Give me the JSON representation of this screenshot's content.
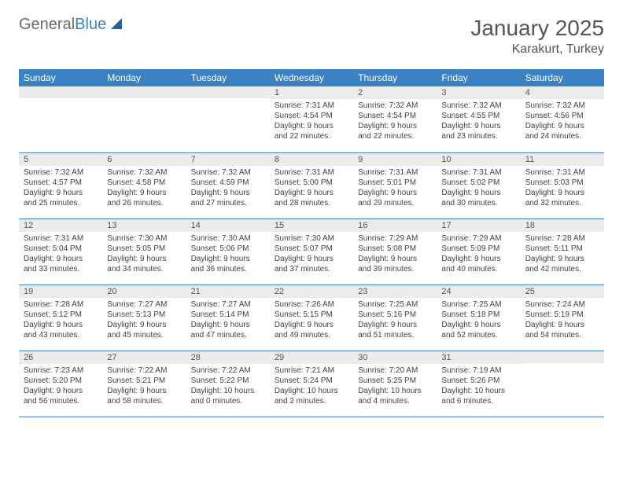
{
  "logo": {
    "text1": "General",
    "text2": "Blue"
  },
  "title": "January 2025",
  "location": "Karakurt, Turkey",
  "header_bg": "#3b82c4",
  "dayheaders": [
    "Sunday",
    "Monday",
    "Tuesday",
    "Wednesday",
    "Thursday",
    "Friday",
    "Saturday"
  ],
  "weeks": [
    [
      {
        "n": "",
        "sr": "",
        "ss": "",
        "dl1": "",
        "dl2": ""
      },
      {
        "n": "",
        "sr": "",
        "ss": "",
        "dl1": "",
        "dl2": ""
      },
      {
        "n": "",
        "sr": "",
        "ss": "",
        "dl1": "",
        "dl2": ""
      },
      {
        "n": "1",
        "sr": "Sunrise: 7:31 AM",
        "ss": "Sunset: 4:54 PM",
        "dl1": "Daylight: 9 hours",
        "dl2": "and 22 minutes."
      },
      {
        "n": "2",
        "sr": "Sunrise: 7:32 AM",
        "ss": "Sunset: 4:54 PM",
        "dl1": "Daylight: 9 hours",
        "dl2": "and 22 minutes."
      },
      {
        "n": "3",
        "sr": "Sunrise: 7:32 AM",
        "ss": "Sunset: 4:55 PM",
        "dl1": "Daylight: 9 hours",
        "dl2": "and 23 minutes."
      },
      {
        "n": "4",
        "sr": "Sunrise: 7:32 AM",
        "ss": "Sunset: 4:56 PM",
        "dl1": "Daylight: 9 hours",
        "dl2": "and 24 minutes."
      }
    ],
    [
      {
        "n": "5",
        "sr": "Sunrise: 7:32 AM",
        "ss": "Sunset: 4:57 PM",
        "dl1": "Daylight: 9 hours",
        "dl2": "and 25 minutes."
      },
      {
        "n": "6",
        "sr": "Sunrise: 7:32 AM",
        "ss": "Sunset: 4:58 PM",
        "dl1": "Daylight: 9 hours",
        "dl2": "and 26 minutes."
      },
      {
        "n": "7",
        "sr": "Sunrise: 7:32 AM",
        "ss": "Sunset: 4:59 PM",
        "dl1": "Daylight: 9 hours",
        "dl2": "and 27 minutes."
      },
      {
        "n": "8",
        "sr": "Sunrise: 7:31 AM",
        "ss": "Sunset: 5:00 PM",
        "dl1": "Daylight: 9 hours",
        "dl2": "and 28 minutes."
      },
      {
        "n": "9",
        "sr": "Sunrise: 7:31 AM",
        "ss": "Sunset: 5:01 PM",
        "dl1": "Daylight: 9 hours",
        "dl2": "and 29 minutes."
      },
      {
        "n": "10",
        "sr": "Sunrise: 7:31 AM",
        "ss": "Sunset: 5:02 PM",
        "dl1": "Daylight: 9 hours",
        "dl2": "and 30 minutes."
      },
      {
        "n": "11",
        "sr": "Sunrise: 7:31 AM",
        "ss": "Sunset: 5:03 PM",
        "dl1": "Daylight: 9 hours",
        "dl2": "and 32 minutes."
      }
    ],
    [
      {
        "n": "12",
        "sr": "Sunrise: 7:31 AM",
        "ss": "Sunset: 5:04 PM",
        "dl1": "Daylight: 9 hours",
        "dl2": "and 33 minutes."
      },
      {
        "n": "13",
        "sr": "Sunrise: 7:30 AM",
        "ss": "Sunset: 5:05 PM",
        "dl1": "Daylight: 9 hours",
        "dl2": "and 34 minutes."
      },
      {
        "n": "14",
        "sr": "Sunrise: 7:30 AM",
        "ss": "Sunset: 5:06 PM",
        "dl1": "Daylight: 9 hours",
        "dl2": "and 36 minutes."
      },
      {
        "n": "15",
        "sr": "Sunrise: 7:30 AM",
        "ss": "Sunset: 5:07 PM",
        "dl1": "Daylight: 9 hours",
        "dl2": "and 37 minutes."
      },
      {
        "n": "16",
        "sr": "Sunrise: 7:29 AM",
        "ss": "Sunset: 5:08 PM",
        "dl1": "Daylight: 9 hours",
        "dl2": "and 39 minutes."
      },
      {
        "n": "17",
        "sr": "Sunrise: 7:29 AM",
        "ss": "Sunset: 5:09 PM",
        "dl1": "Daylight: 9 hours",
        "dl2": "and 40 minutes."
      },
      {
        "n": "18",
        "sr": "Sunrise: 7:28 AM",
        "ss": "Sunset: 5:11 PM",
        "dl1": "Daylight: 9 hours",
        "dl2": "and 42 minutes."
      }
    ],
    [
      {
        "n": "19",
        "sr": "Sunrise: 7:28 AM",
        "ss": "Sunset: 5:12 PM",
        "dl1": "Daylight: 9 hours",
        "dl2": "and 43 minutes."
      },
      {
        "n": "20",
        "sr": "Sunrise: 7:27 AM",
        "ss": "Sunset: 5:13 PM",
        "dl1": "Daylight: 9 hours",
        "dl2": "and 45 minutes."
      },
      {
        "n": "21",
        "sr": "Sunrise: 7:27 AM",
        "ss": "Sunset: 5:14 PM",
        "dl1": "Daylight: 9 hours",
        "dl2": "and 47 minutes."
      },
      {
        "n": "22",
        "sr": "Sunrise: 7:26 AM",
        "ss": "Sunset: 5:15 PM",
        "dl1": "Daylight: 9 hours",
        "dl2": "and 49 minutes."
      },
      {
        "n": "23",
        "sr": "Sunrise: 7:25 AM",
        "ss": "Sunset: 5:16 PM",
        "dl1": "Daylight: 9 hours",
        "dl2": "and 51 minutes."
      },
      {
        "n": "24",
        "sr": "Sunrise: 7:25 AM",
        "ss": "Sunset: 5:18 PM",
        "dl1": "Daylight: 9 hours",
        "dl2": "and 52 minutes."
      },
      {
        "n": "25",
        "sr": "Sunrise: 7:24 AM",
        "ss": "Sunset: 5:19 PM",
        "dl1": "Daylight: 9 hours",
        "dl2": "and 54 minutes."
      }
    ],
    [
      {
        "n": "26",
        "sr": "Sunrise: 7:23 AM",
        "ss": "Sunset: 5:20 PM",
        "dl1": "Daylight: 9 hours",
        "dl2": "and 56 minutes."
      },
      {
        "n": "27",
        "sr": "Sunrise: 7:22 AM",
        "ss": "Sunset: 5:21 PM",
        "dl1": "Daylight: 9 hours",
        "dl2": "and 58 minutes."
      },
      {
        "n": "28",
        "sr": "Sunrise: 7:22 AM",
        "ss": "Sunset: 5:22 PM",
        "dl1": "Daylight: 10 hours",
        "dl2": "and 0 minutes."
      },
      {
        "n": "29",
        "sr": "Sunrise: 7:21 AM",
        "ss": "Sunset: 5:24 PM",
        "dl1": "Daylight: 10 hours",
        "dl2": "and 2 minutes."
      },
      {
        "n": "30",
        "sr": "Sunrise: 7:20 AM",
        "ss": "Sunset: 5:25 PM",
        "dl1": "Daylight: 10 hours",
        "dl2": "and 4 minutes."
      },
      {
        "n": "31",
        "sr": "Sunrise: 7:19 AM",
        "ss": "Sunset: 5:26 PM",
        "dl1": "Daylight: 10 hours",
        "dl2": "and 6 minutes."
      },
      {
        "n": "",
        "sr": "",
        "ss": "",
        "dl1": "",
        "dl2": ""
      }
    ]
  ]
}
